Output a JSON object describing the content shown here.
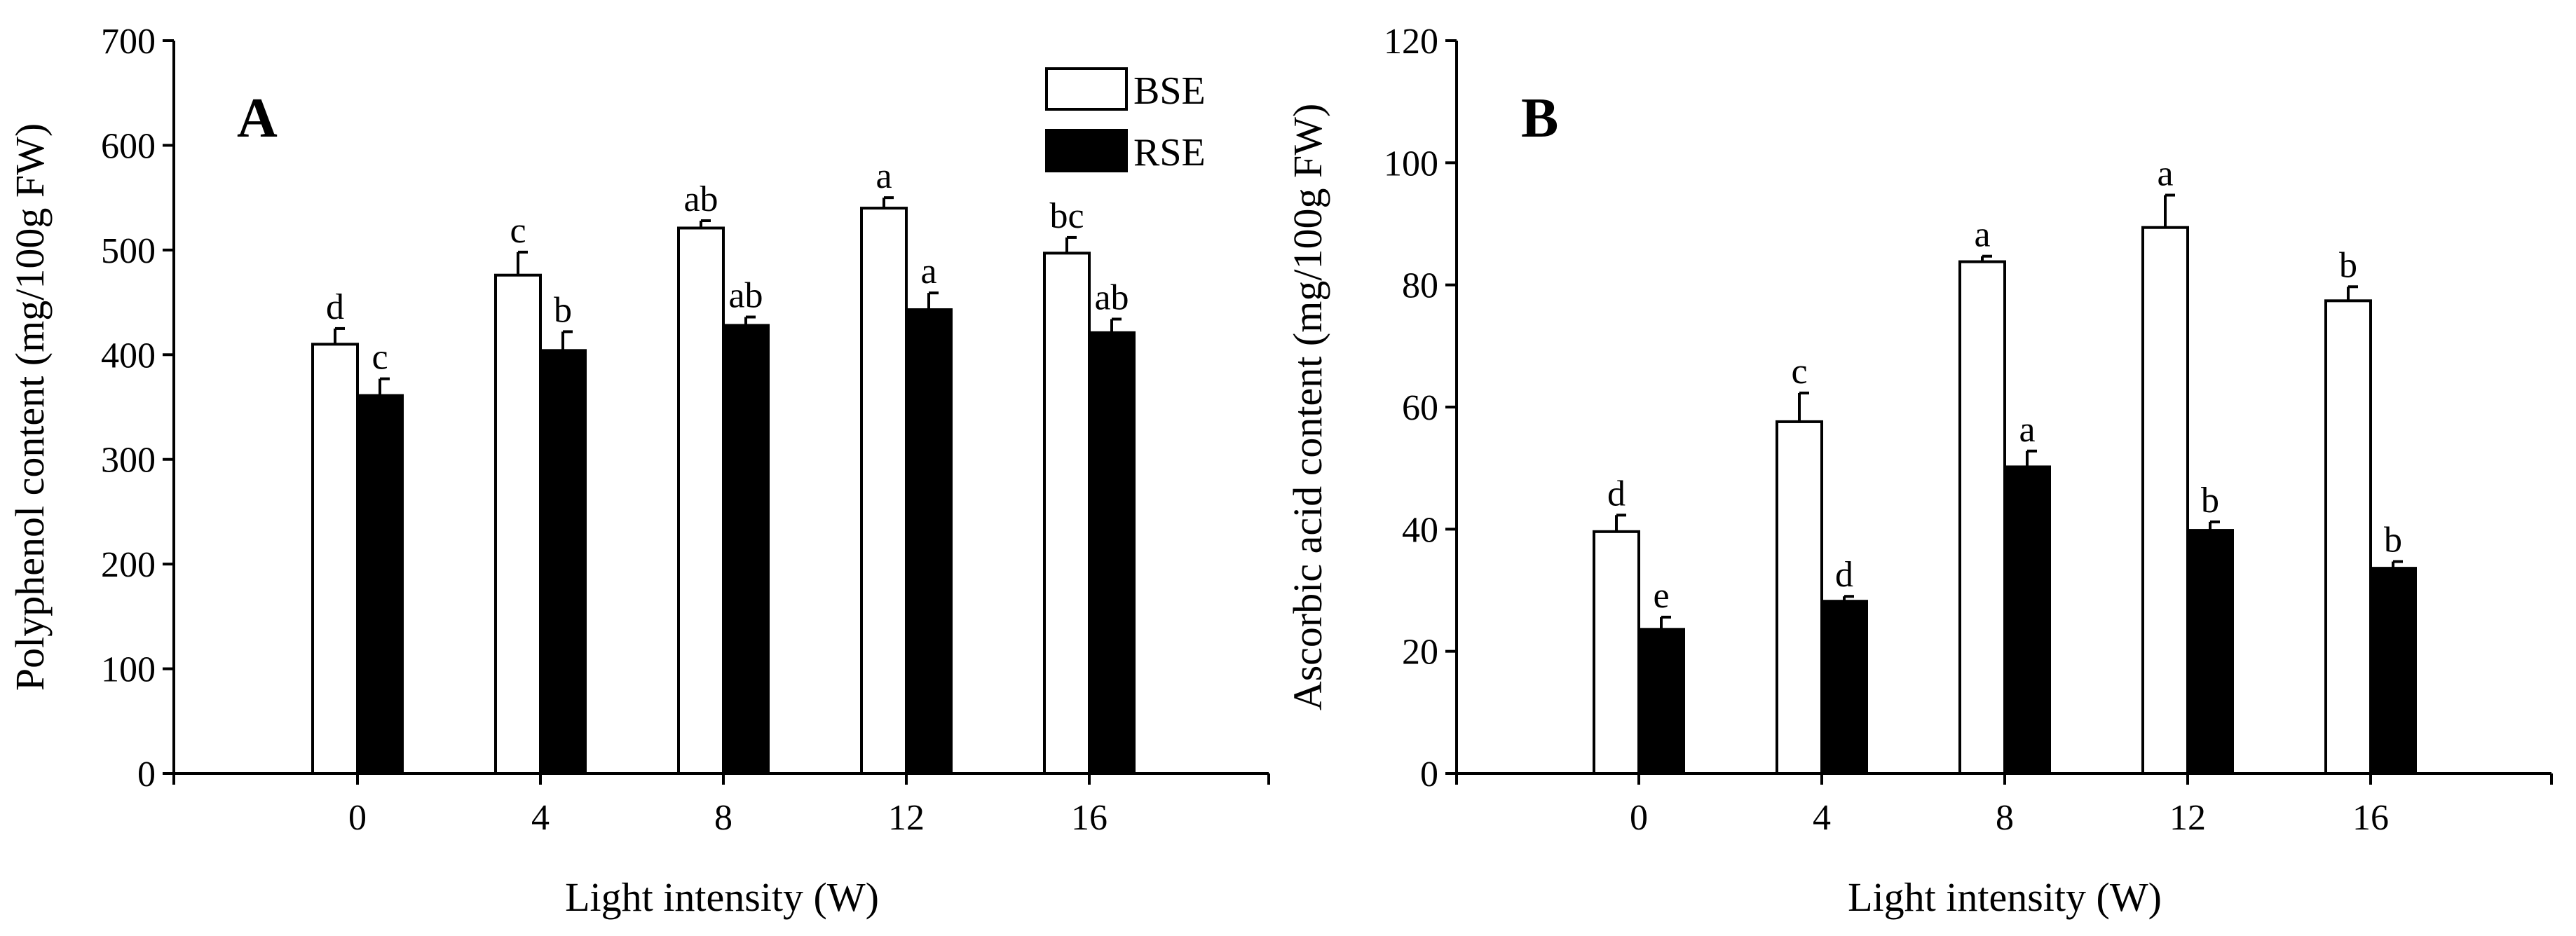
{
  "legend": {
    "series": [
      {
        "name": "BSE",
        "fill": "#ffffff"
      },
      {
        "name": "RSE",
        "fill": "#000000"
      }
    ],
    "placement": "top-right of panel A"
  },
  "chart_data": [
    {
      "type": "bar",
      "panel": "A",
      "title": "",
      "xlabel": "Light intensity (W)",
      "ylabel": "Polyphenol content (mg/100g FW)",
      "ylim": [
        0,
        700
      ],
      "yticks": [
        0,
        100,
        200,
        300,
        400,
        500,
        600,
        700
      ],
      "categories": [
        "0",
        "4",
        "8",
        "12",
        "16"
      ],
      "series": [
        {
          "name": "BSE",
          "values": [
            410,
            476,
            521,
            540,
            497
          ],
          "errors": [
            15,
            22,
            7,
            10,
            15
          ],
          "labels": [
            "d",
            "c",
            "ab",
            "a",
            "bc"
          ]
        },
        {
          "name": "RSE",
          "values": [
            361,
            404,
            428,
            443,
            421
          ],
          "errors": [
            16,
            18,
            8,
            16,
            13
          ],
          "labels": [
            "c",
            "b",
            "ab",
            "a",
            "ab"
          ]
        }
      ]
    },
    {
      "type": "bar",
      "panel": "B",
      "title": "",
      "xlabel": "Light intensity (W)",
      "ylabel": "Ascorbic acid content (mg/100g FW)",
      "ylim": [
        0,
        120
      ],
      "yticks": [
        0,
        20,
        40,
        60,
        80,
        100,
        120
      ],
      "categories": [
        "0",
        "4",
        "8",
        "12",
        "16"
      ],
      "series": [
        {
          "name": "BSE",
          "values": [
            39.6,
            57.6,
            83.8,
            89.4,
            77.4
          ],
          "errors": [
            2.7,
            4.7,
            0.9,
            5.3,
            2.3
          ],
          "labels": [
            "d",
            "c",
            "a",
            "a",
            "b"
          ]
        },
        {
          "name": "RSE",
          "values": [
            23.6,
            28.2,
            50.2,
            39.8,
            33.6
          ],
          "errors": [
            2.0,
            0.8,
            2.6,
            1.4,
            1.1
          ],
          "labels": [
            "e",
            "d",
            "a",
            "b",
            "b"
          ]
        }
      ]
    }
  ]
}
